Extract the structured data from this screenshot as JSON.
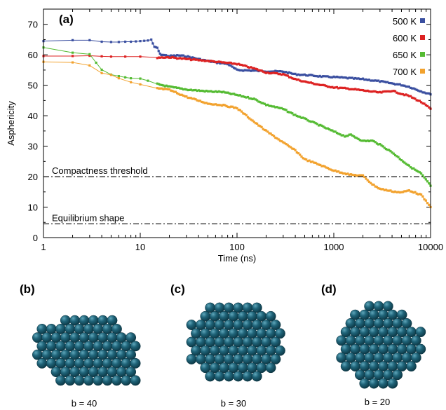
{
  "chart_data": {
    "type": "line",
    "panel_label": "(a)",
    "xlabel": "Time (ns)",
    "ylabel": "Asphericity",
    "xscale": "log",
    "xlim": [
      1,
      10000
    ],
    "ylim": [
      0,
      75
    ],
    "x_ticks": [
      1,
      10,
      100,
      1000,
      10000
    ],
    "x_tick_labels": [
      "1",
      "10",
      "100",
      "1000",
      "10000"
    ],
    "y_ticks": [
      0,
      10,
      20,
      30,
      40,
      50,
      60,
      70
    ],
    "y_tick_labels": [
      "0",
      "10",
      "20",
      "30",
      "40",
      "50",
      "60",
      "70"
    ],
    "grid": false,
    "legend_position": "top-right",
    "series": [
      {
        "name": "500 K",
        "color": "#3a4fa0",
        "points": [
          [
            1,
            64.5
          ],
          [
            2,
            64.8
          ],
          [
            3,
            64.8
          ],
          [
            4,
            64.3
          ],
          [
            5,
            64.2
          ],
          [
            6,
            64.2
          ],
          [
            7,
            64.3
          ],
          [
            8,
            64.3
          ],
          [
            9,
            64.4
          ],
          [
            10,
            64.5
          ],
          [
            11,
            64.6
          ],
          [
            12,
            64.7
          ],
          [
            13,
            65.0
          ],
          [
            14,
            62.5
          ],
          [
            15,
            62.3
          ],
          [
            16,
            60.2
          ],
          [
            17,
            60.0
          ],
          [
            20,
            59.6
          ],
          [
            25,
            59.8
          ],
          [
            30,
            59.5
          ],
          [
            40,
            58.6
          ],
          [
            60,
            57.5
          ],
          [
            80,
            57.0
          ],
          [
            100,
            55.0
          ],
          [
            150,
            54.8
          ],
          [
            200,
            54.6
          ],
          [
            300,
            54.5
          ],
          [
            400,
            53.6
          ],
          [
            600,
            53.2
          ],
          [
            800,
            52.8
          ],
          [
            1000,
            52.7
          ],
          [
            1500,
            52.3
          ],
          [
            2000,
            52.0
          ],
          [
            3000,
            51.3
          ],
          [
            4000,
            50.6
          ],
          [
            5000,
            50.1
          ],
          [
            6000,
            49.5
          ],
          [
            8000,
            48.0
          ],
          [
            10000,
            47.0
          ]
        ]
      },
      {
        "name": "600 K",
        "color": "#dd2222",
        "points": [
          [
            1,
            59.6
          ],
          [
            2,
            59.6
          ],
          [
            3,
            59.7
          ],
          [
            4,
            59.5
          ],
          [
            5,
            59.4
          ],
          [
            7,
            59.4
          ],
          [
            10,
            59.4
          ],
          [
            15,
            59.1
          ],
          [
            20,
            59.2
          ],
          [
            30,
            58.6
          ],
          [
            50,
            58.0
          ],
          [
            70,
            57.5
          ],
          [
            100,
            57.0
          ],
          [
            150,
            55.5
          ],
          [
            200,
            54.2
          ],
          [
            300,
            53.6
          ],
          [
            400,
            52.0
          ],
          [
            500,
            51.2
          ],
          [
            700,
            50.2
          ],
          [
            1000,
            49.3
          ],
          [
            1500,
            48.8
          ],
          [
            2000,
            48.3
          ],
          [
            3000,
            47.6
          ],
          [
            4000,
            48.2
          ],
          [
            5000,
            47.2
          ],
          [
            6000,
            46.5
          ],
          [
            8000,
            44.5
          ],
          [
            10000,
            42.3
          ]
        ]
      },
      {
        "name": "650 K",
        "color": "#55bb33",
        "points": [
          [
            1,
            62.4
          ],
          [
            2,
            60.7
          ],
          [
            3,
            60.2
          ],
          [
            3.5,
            57.4
          ],
          [
            4,
            55.1
          ],
          [
            5,
            53.5
          ],
          [
            6,
            53.0
          ],
          [
            7,
            52.6
          ],
          [
            8,
            52.3
          ],
          [
            10,
            52.2
          ],
          [
            12,
            51.5
          ],
          [
            15,
            50.4
          ],
          [
            20,
            49.5
          ],
          [
            30,
            48.6
          ],
          [
            50,
            48.0
          ],
          [
            70,
            47.8
          ],
          [
            100,
            46.8
          ],
          [
            150,
            45.5
          ],
          [
            200,
            43.6
          ],
          [
            300,
            42.2
          ],
          [
            400,
            40.2
          ],
          [
            500,
            39.0
          ],
          [
            700,
            37.0
          ],
          [
            1000,
            34.8
          ],
          [
            1300,
            33.3
          ],
          [
            1500,
            33.7
          ],
          [
            2000,
            31.7
          ],
          [
            2500,
            31.8
          ],
          [
            3000,
            30.5
          ],
          [
            4000,
            28.0
          ],
          [
            5000,
            25.5
          ],
          [
            6000,
            23.5
          ],
          [
            8000,
            21.0
          ],
          [
            10000,
            17.0
          ]
        ]
      },
      {
        "name": "700 K",
        "color": "#f2a22e",
        "points": [
          [
            1,
            57.7
          ],
          [
            2,
            57.5
          ],
          [
            3,
            56.5
          ],
          [
            4,
            54.0
          ],
          [
            5,
            53.4
          ],
          [
            6,
            52.3
          ],
          [
            8,
            51.0
          ],
          [
            10,
            50.3
          ],
          [
            15,
            49.0
          ],
          [
            20,
            48.5
          ],
          [
            30,
            46.2
          ],
          [
            50,
            44.0
          ],
          [
            70,
            43.5
          ],
          [
            100,
            42.5
          ],
          [
            150,
            38.0
          ],
          [
            200,
            35.0
          ],
          [
            300,
            31.2
          ],
          [
            400,
            28.6
          ],
          [
            500,
            25.7
          ],
          [
            700,
            24.0
          ],
          [
            1000,
            22.0
          ],
          [
            1500,
            20.6
          ],
          [
            2000,
            20.3
          ],
          [
            2500,
            17.5
          ],
          [
            3000,
            16.0
          ],
          [
            4000,
            15.2
          ],
          [
            5000,
            14.8
          ],
          [
            6000,
            15.5
          ],
          [
            8000,
            14.0
          ],
          [
            10000,
            10.0
          ]
        ]
      }
    ],
    "reference_lines": [
      {
        "label": "Compactness threshold",
        "y": 20
      },
      {
        "label": "Equilibrium shape",
        "y": 4.5
      }
    ]
  },
  "clusters": [
    {
      "panel_label": "(b)",
      "caption": "b = 40",
      "shape": "elongated-slab"
    },
    {
      "panel_label": "(c)",
      "caption": "b = 30",
      "shape": "rounded-block"
    },
    {
      "panel_label": "(d)",
      "caption": "b = 20",
      "shape": "compact-polyhedron"
    }
  ],
  "colors": {
    "sphere_fill": "#1c5a6e",
    "sphere_highlight": "#4b93a8",
    "sphere_edge": "#0a2f3b"
  }
}
